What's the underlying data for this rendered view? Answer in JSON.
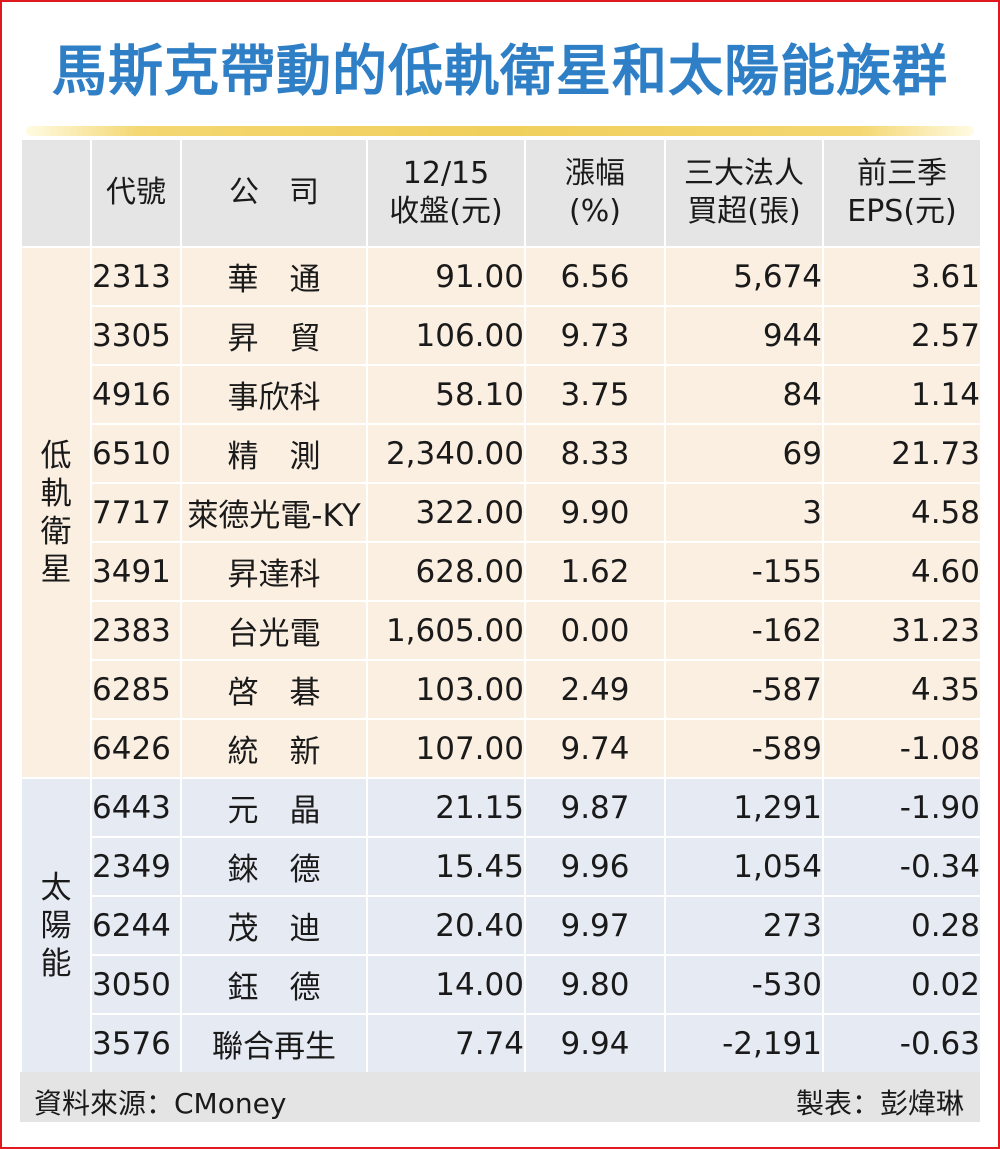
{
  "title": "馬斯克帶動的低軌衛星和太陽能族群",
  "headers": {
    "code": "代號",
    "company": "公　司",
    "close_line1": "12/15",
    "close_line2": "收盤(元)",
    "change_line1": "漲幅",
    "change_line2": "(%)",
    "inst_line1": "三大法人",
    "inst_line2": "買超(張)",
    "eps_line1": "前三季",
    "eps_line2": "EPS(元)"
  },
  "groups": [
    {
      "label": "低軌衛星",
      "rows": [
        {
          "code": "2313",
          "name": "華　通",
          "close": "91.00",
          "change": "6.56",
          "inst": "5,674",
          "eps": "3.61"
        },
        {
          "code": "3305",
          "name": "昇　貿",
          "close": "106.00",
          "change": "9.73",
          "inst": "944",
          "eps": "2.57"
        },
        {
          "code": "4916",
          "name": "事欣科",
          "close": "58.10",
          "change": "3.75",
          "inst": "84",
          "eps": "1.14"
        },
        {
          "code": "6510",
          "name": "精　測",
          "close": "2,340.00",
          "change": "8.33",
          "inst": "69",
          "eps": "21.73"
        },
        {
          "code": "7717",
          "name": "萊德光電-KY",
          "close": "322.00",
          "change": "9.90",
          "inst": "3",
          "eps": "4.58"
        },
        {
          "code": "3491",
          "name": "昇達科",
          "close": "628.00",
          "change": "1.62",
          "inst": "-155",
          "eps": "4.60"
        },
        {
          "code": "2383",
          "name": "台光電",
          "close": "1,605.00",
          "change": "0.00",
          "inst": "-162",
          "eps": "31.23"
        },
        {
          "code": "6285",
          "name": "啓　碁",
          "close": "103.00",
          "change": "2.49",
          "inst": "-587",
          "eps": "4.35"
        },
        {
          "code": "6426",
          "name": "統　新",
          "close": "107.00",
          "change": "9.74",
          "inst": "-589",
          "eps": "-1.08"
        }
      ]
    },
    {
      "label": "太陽能",
      "rows": [
        {
          "code": "6443",
          "name": "元　晶",
          "close": "21.15",
          "change": "9.87",
          "inst": "1,291",
          "eps": "-1.90"
        },
        {
          "code": "2349",
          "name": "錸　德",
          "close": "15.45",
          "change": "9.96",
          "inst": "1,054",
          "eps": "-0.34"
        },
        {
          "code": "6244",
          "name": "茂　迪",
          "close": "20.40",
          "change": "9.97",
          "inst": "273",
          "eps": "0.28"
        },
        {
          "code": "3050",
          "name": "鈺　德",
          "close": "14.00",
          "change": "9.80",
          "inst": "-530",
          "eps": "0.02"
        },
        {
          "code": "3576",
          "name": "聯合再生",
          "close": "7.74",
          "change": "9.94",
          "inst": "-2,191",
          "eps": "-0.63"
        }
      ]
    }
  ],
  "footer": {
    "source": "資料來源：CMoney",
    "credit": "製表：彭煒琳"
  }
}
